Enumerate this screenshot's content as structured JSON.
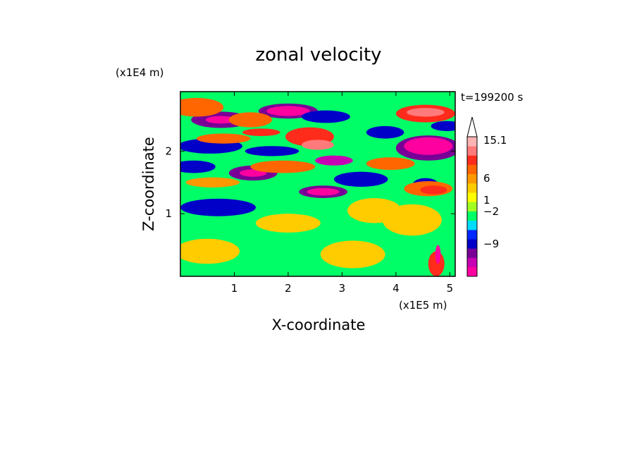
{
  "chart_data": {
    "type": "heatmap",
    "title": "zonal velocity",
    "xlabel": "X-coordinate",
    "ylabel": "Z-coordinate",
    "x_unit": "(x1E5 m)",
    "y_unit": "(x1E4 m)",
    "time_label": "t=199200 s",
    "xlim": [
      0,
      5.1
    ],
    "ylim": [
      0,
      2.95
    ],
    "x_ticks": [
      "1",
      "2",
      "3",
      "4",
      "5"
    ],
    "x_tick_values": [
      1,
      2,
      3,
      4,
      5
    ],
    "y_ticks": [
      "1",
      "2"
    ],
    "y_tick_values": [
      1,
      2
    ],
    "colorbar": {
      "colors": [
        "#ff00a0",
        "#c800b4",
        "#780096",
        "#0000c8",
        "#0028ff",
        "#00ddff",
        "#00ff66",
        "#a0ff20",
        "#ffff00",
        "#ffcc00",
        "#ff9900",
        "#ff6600",
        "#ff2b1b",
        "#ff7a7a",
        "#ffb4b4",
        "#ffffff"
      ],
      "labels": [
        "15.1",
        "6",
        "1",
        "−2",
        "−9"
      ],
      "label_levels": [
        15.1,
        6,
        1,
        -2,
        -9
      ],
      "extend_max": true
    },
    "background_level": 0,
    "blobs": [
      {
        "x": 0.75,
        "z": 2.5,
        "rx": 0.55,
        "rz": 0.13,
        "v": -6
      },
      {
        "x": 0.75,
        "z": 2.5,
        "rx": 0.28,
        "rz": 0.06,
        "v": -12
      },
      {
        "x": 2.0,
        "z": 2.64,
        "rx": 0.55,
        "rz": 0.12,
        "v": -6
      },
      {
        "x": 2.0,
        "z": 2.64,
        "rx": 0.4,
        "rz": 0.08,
        "v": -12
      },
      {
        "x": 2.7,
        "z": 2.55,
        "rx": 0.45,
        "rz": 0.1,
        "v": -3
      },
      {
        "x": 4.6,
        "z": 2.05,
        "rx": 0.6,
        "rz": 0.2,
        "v": -6
      },
      {
        "x": 4.6,
        "z": 2.08,
        "rx": 0.45,
        "rz": 0.14,
        "v": -12
      },
      {
        "x": 2.85,
        "z": 1.85,
        "rx": 0.35,
        "rz": 0.08,
        "v": -9
      },
      {
        "x": 1.35,
        "z": 1.65,
        "rx": 0.45,
        "rz": 0.12,
        "v": -6
      },
      {
        "x": 1.35,
        "z": 1.65,
        "rx": 0.25,
        "rz": 0.06,
        "v": -12
      },
      {
        "x": 2.65,
        "z": 1.35,
        "rx": 0.45,
        "rz": 0.1,
        "v": -6
      },
      {
        "x": 2.65,
        "z": 1.35,
        "rx": 0.3,
        "rz": 0.06,
        "v": -12
      },
      {
        "x": 0.55,
        "z": 2.08,
        "rx": 0.6,
        "rz": 0.12,
        "v": -3
      },
      {
        "x": 1.7,
        "z": 2.0,
        "rx": 0.5,
        "rz": 0.08,
        "v": -3
      },
      {
        "x": 0.25,
        "z": 1.75,
        "rx": 0.4,
        "rz": 0.1,
        "v": -3
      },
      {
        "x": 0.7,
        "z": 1.1,
        "rx": 0.7,
        "rz": 0.14,
        "v": -3
      },
      {
        "x": 3.35,
        "z": 1.55,
        "rx": 0.5,
        "rz": 0.12,
        "v": -3
      },
      {
        "x": 3.8,
        "z": 2.3,
        "rx": 0.35,
        "rz": 0.1,
        "v": -3
      },
      {
        "x": 4.95,
        "z": 2.4,
        "rx": 0.3,
        "rz": 0.08,
        "v": -3
      },
      {
        "x": 4.55,
        "z": 1.45,
        "rx": 0.25,
        "rz": 0.12,
        "v": -3
      },
      {
        "x": 0.3,
        "z": 2.7,
        "rx": 0.5,
        "rz": 0.15,
        "v": 5
      },
      {
        "x": 1.3,
        "z": 2.5,
        "rx": 0.4,
        "rz": 0.12,
        "v": 5
      },
      {
        "x": 1.5,
        "z": 2.3,
        "rx": 0.35,
        "rz": 0.06,
        "v": 8
      },
      {
        "x": 2.4,
        "z": 2.23,
        "rx": 0.45,
        "rz": 0.15,
        "v": 8
      },
      {
        "x": 2.55,
        "z": 2.1,
        "rx": 0.3,
        "rz": 0.08,
        "v": 11
      },
      {
        "x": 4.55,
        "z": 2.6,
        "rx": 0.55,
        "rz": 0.14,
        "v": 8
      },
      {
        "x": 4.55,
        "z": 2.62,
        "rx": 0.35,
        "rz": 0.07,
        "v": 11
      },
      {
        "x": 0.8,
        "z": 2.2,
        "rx": 0.5,
        "rz": 0.08,
        "v": 5
      },
      {
        "x": 1.9,
        "z": 1.75,
        "rx": 0.6,
        "rz": 0.1,
        "v": 5
      },
      {
        "x": 3.9,
        "z": 1.8,
        "rx": 0.45,
        "rz": 0.1,
        "v": 5
      },
      {
        "x": 4.6,
        "z": 1.4,
        "rx": 0.45,
        "rz": 0.12,
        "v": 5
      },
      {
        "x": 4.7,
        "z": 1.38,
        "rx": 0.25,
        "rz": 0.07,
        "v": 8
      },
      {
        "x": 0.6,
        "z": 1.5,
        "rx": 0.5,
        "rz": 0.08,
        "v": 3.5
      },
      {
        "x": 2.0,
        "z": 0.85,
        "rx": 0.6,
        "rz": 0.15,
        "v": 2
      },
      {
        "x": 0.5,
        "z": 0.4,
        "rx": 0.6,
        "rz": 0.2,
        "v": 2
      },
      {
        "x": 3.2,
        "z": 0.35,
        "rx": 0.6,
        "rz": 0.22,
        "v": 2
      },
      {
        "x": 3.6,
        "z": 1.05,
        "rx": 0.5,
        "rz": 0.2,
        "v": 2
      },
      {
        "x": 4.3,
        "z": 0.9,
        "rx": 0.55,
        "rz": 0.25,
        "v": 2
      },
      {
        "x": 4.75,
        "z": 0.2,
        "rx": 0.15,
        "rz": 0.2,
        "v": 8
      },
      {
        "x": 4.78,
        "z": 0.35,
        "rx": 0.05,
        "rz": 0.15,
        "v": -12
      }
    ]
  }
}
